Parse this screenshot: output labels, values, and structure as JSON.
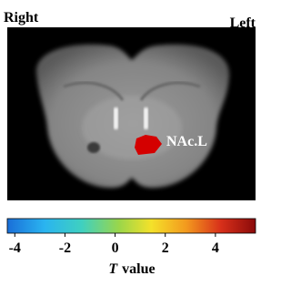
{
  "labels": {
    "right": "Right",
    "left": "Left"
  },
  "annotation": "NAc.L",
  "colorbar": {
    "lim": [
      -4.3,
      5.6
    ],
    "ticks": [
      -4,
      -2,
      0,
      2,
      4
    ],
    "label_symbol": "T",
    "label": "value"
  }
}
